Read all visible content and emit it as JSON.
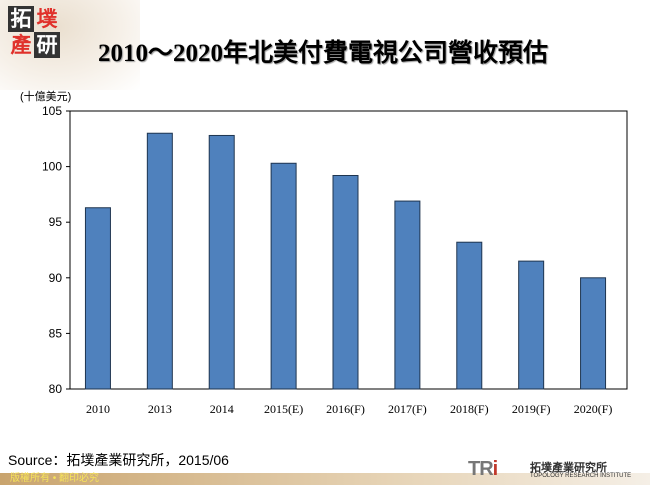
{
  "logo": {
    "chars": [
      "拓",
      "墣",
      "產",
      "研"
    ]
  },
  "chart_data": {
    "type": "bar",
    "title": "2010～2020年北美付費電視公司營收預估",
    "ylabel": "(十億美元)",
    "xlabel": "",
    "categories": [
      "2010",
      "2013",
      "2014",
      "2015(E)",
      "2016(F)",
      "2017(F)",
      "2018(F)",
      "2019(F)",
      "2020(F)"
    ],
    "values": [
      96.3,
      103.0,
      102.8,
      100.3,
      99.2,
      96.9,
      93.2,
      91.5,
      90.0
    ],
    "ylim": [
      80,
      105
    ],
    "yticks": [
      "80",
      "85",
      "90",
      "95",
      "100",
      "105"
    ],
    "grid": false,
    "bar_color": "#4f81bd"
  },
  "source": "Source：拓墣產業研究所，2015/06",
  "footer": {
    "copyright": "版權所有 • 翻印必究",
    "brand_mark": "TRi",
    "brand_cn": "拓墣產業研究所",
    "brand_en": "TOPOLOGY RESEARCH INSTITUTE"
  }
}
